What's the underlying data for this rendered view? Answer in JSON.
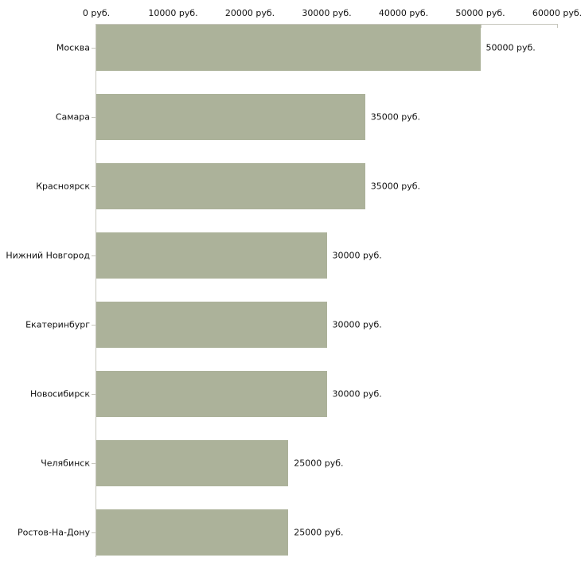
{
  "chart_data": {
    "type": "bar",
    "orientation": "horizontal",
    "title": "",
    "xlabel": "",
    "ylabel": "",
    "unit": "руб.",
    "categories": [
      "Москва",
      "Самара",
      "Красноярск",
      "Нижний Новгород",
      "Екатеринбург",
      "Новосибирск",
      "Челябинск",
      "Ростов-На-Дону"
    ],
    "values": [
      50000,
      35000,
      35000,
      30000,
      30000,
      30000,
      25000,
      25000
    ],
    "value_labels": [
      "50000 руб.",
      "35000 руб.",
      "35000 руб.",
      "30000 руб.",
      "30000 руб.",
      "30000 руб.",
      "25000 руб.",
      "25000 руб."
    ],
    "x_ticks": [
      0,
      10000,
      20000,
      30000,
      40000,
      50000,
      60000
    ],
    "x_tick_labels": [
      "0 руб.",
      "10000 руб.",
      "20000 руб.",
      "30000 руб.",
      "40000 руб.",
      "50000 руб.",
      "60000 руб."
    ],
    "xlim": [
      0,
      60000
    ],
    "grid": false,
    "legend": false,
    "axis_position": "top",
    "colors": {
      "bar": "#acb29a",
      "axis": "#c6c6bc",
      "text": "#111111",
      "background": "#ffffff"
    }
  }
}
